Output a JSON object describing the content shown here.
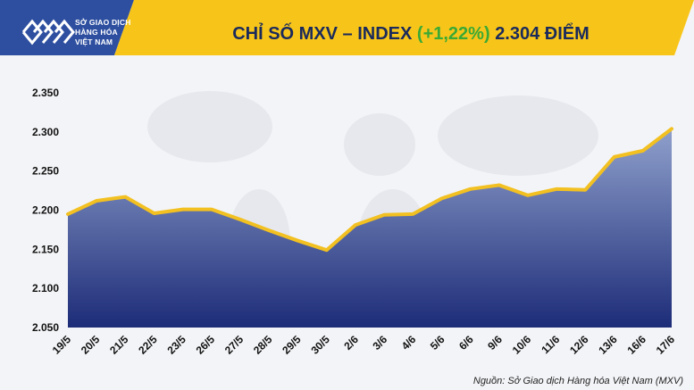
{
  "header": {
    "logo_lines": [
      "SỞ GIAO DỊCH",
      "HÀNG HÓA",
      "VIỆT NAM"
    ],
    "title_main": "CHỈ SỐ MXV – INDEX",
    "title_change": "(+1,22%)",
    "title_value": "2.304 ĐIỂM"
  },
  "source_note": "Nguồn: Sở Giao dịch Hàng hóa Việt Nam (MXV)",
  "colors": {
    "header_yellow": "#f7c519",
    "header_left": "#2e4fa0",
    "line": "#f2c021",
    "area_top": "#8fa0cc",
    "area_bottom": "#1d2c78",
    "change_green": "#3aa935",
    "title_navy": "#1a2a5c"
  },
  "chart_data": {
    "type": "area",
    "categories": [
      "19/5",
      "20/5",
      "21/5",
      "22/5",
      "23/5",
      "26/5",
      "27/5",
      "28/5",
      "29/5",
      "30/5",
      "2/6",
      "3/6",
      "4/6",
      "5/6",
      "6/6",
      "9/6",
      "10/6",
      "11/6",
      "12/6",
      "13/6",
      "16/6",
      "17/6"
    ],
    "values": [
      2195,
      2212,
      2217,
      2196,
      2201,
      2201,
      2188,
      2174,
      2161,
      2149,
      2181,
      2194,
      2195,
      2215,
      2227,
      2232,
      2219,
      2227,
      2226,
      2268,
      2276,
      2304
    ],
    "ylim": [
      2050,
      2350
    ],
    "yticks": [
      2050,
      2100,
      2150,
      2200,
      2250,
      2300,
      2350
    ],
    "ytick_labels": [
      "2.050",
      "2.100",
      "2.150",
      "2.200",
      "2.250",
      "2.300",
      "2.350"
    ],
    "grid": false
  }
}
